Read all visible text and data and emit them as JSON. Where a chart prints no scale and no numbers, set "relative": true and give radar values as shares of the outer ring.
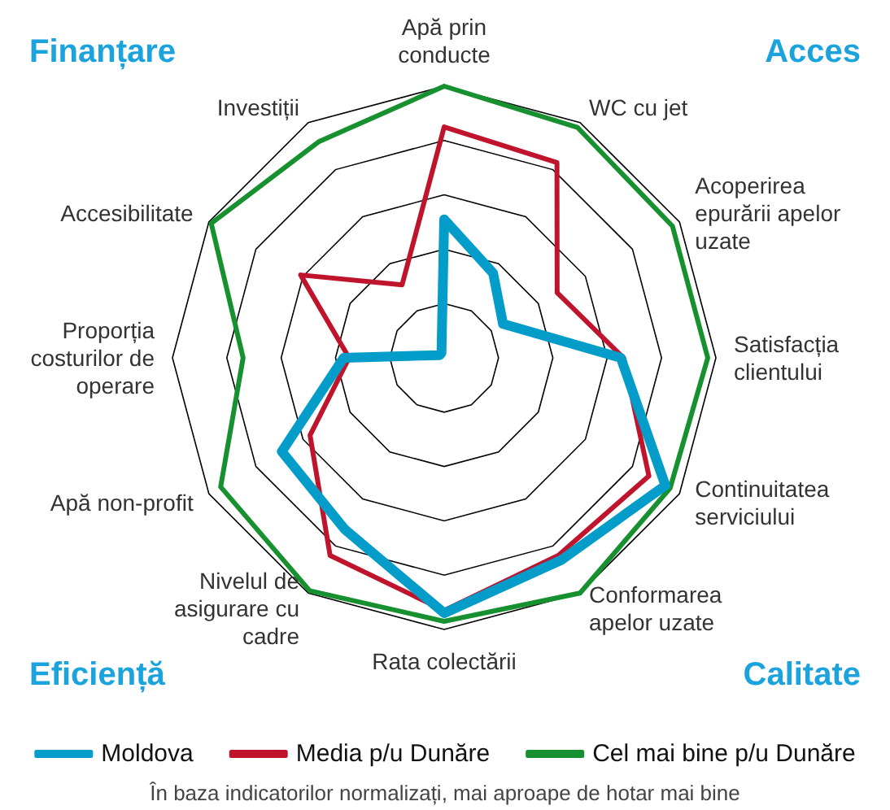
{
  "chart_data": {
    "type": "radar",
    "relative": true,
    "categories": [
      "Apă prin conducte",
      "WC cu jet",
      "Acoperirea epurării apelor uzate",
      "Satisfacția clientului",
      "Continuitatea serviciului",
      "Conformarea apelor uzate",
      "Rata colectării",
      "Nivelul de asigurare cu cadre",
      "Apă non-profit",
      "Proporția costurilor de operare",
      "Accesibilitate",
      "Investiții"
    ],
    "series": [
      {
        "name": "Moldova",
        "color": "#049cc8",
        "values": [
          0.51,
          0.36,
          0.25,
          0.65,
          0.94,
          0.86,
          0.94,
          0.73,
          0.69,
          0.37,
          0.02,
          0.02
        ]
      },
      {
        "name": "Media p/u Dunăre",
        "color": "#c0142c",
        "values": [
          0.85,
          0.83,
          0.48,
          0.66,
          0.87,
          0.84,
          0.93,
          0.84,
          0.57,
          0.35,
          0.61,
          0.31
        ]
      },
      {
        "name": "Cel mai bine p/u Dunăre",
        "color": "#17912f",
        "values": [
          1.0,
          0.98,
          0.97,
          0.97,
          0.96,
          1.0,
          0.97,
          0.99,
          0.95,
          0.74,
          0.99,
          0.92
        ]
      }
    ],
    "annotations": [
      "Finanțare",
      "Acces",
      "Eficiență",
      "Calitate",
      "În baza indicatorilor normalizați, mai aproape de hotar mai bine"
    ],
    "legend": "bottom",
    "marker": "none",
    "line_style": "solid"
  }
}
